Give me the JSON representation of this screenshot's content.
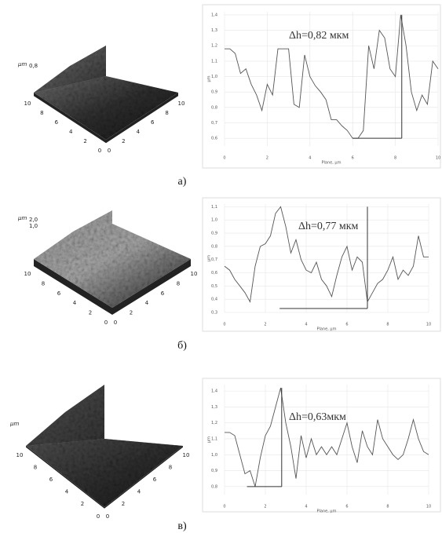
{
  "chart_data": [
    {
      "type": "line",
      "x_label": "Plane, µm",
      "y_label": "µm",
      "annotation": "Δh=0,82 мкм",
      "grid": true,
      "x": [
        0,
        0.25,
        0.5,
        0.75,
        1,
        1.25,
        1.5,
        1.75,
        2,
        2.25,
        2.5,
        2.75,
        3,
        3.25,
        3.5,
        3.75,
        4,
        4.25,
        4.5,
        4.75,
        5,
        5.25,
        5.5,
        5.75,
        6,
        6.25,
        6.5,
        6.75,
        7,
        7.25,
        7.5,
        7.75,
        8,
        8.25,
        8.5,
        8.75,
        9,
        9.25,
        9.5,
        9.75,
        10
      ],
      "values": [
        1.18,
        1.18,
        1.15,
        1.02,
        1.05,
        0.95,
        0.88,
        0.78,
        0.95,
        0.88,
        1.18,
        1.18,
        1.18,
        0.82,
        0.8,
        1.14,
        1.0,
        0.94,
        0.9,
        0.85,
        0.72,
        0.72,
        0.68,
        0.65,
        0.6,
        0.6,
        0.65,
        1.2,
        1.05,
        1.3,
        1.25,
        1.05,
        1.0,
        1.4,
        1.2,
        0.9,
        0.78,
        0.88,
        0.82,
        1.1,
        1.05
      ],
      "color": "#555555",
      "marker_x": [
        6.0,
        8.3
      ],
      "marker_y": [
        0.6,
        1.4
      ],
      "xlim": [
        0,
        10
      ],
      "xticks": [
        0,
        2,
        4,
        6,
        8,
        10
      ],
      "ylim": [
        0.55,
        1.42
      ],
      "yticks": [
        {
          "value": 0.6,
          "label": "0,6"
        },
        {
          "value": 0.7,
          "label": "0,7"
        },
        {
          "value": 0.8,
          "label": "0,8"
        },
        {
          "value": 0.9,
          "label": "0,9"
        },
        {
          "value": 1.0,
          "label": "1,0"
        },
        {
          "value": 1.1,
          "label": "1,1"
        },
        {
          "value": 1.2,
          "label": "1,2"
        },
        {
          "value": 1.3,
          "label": "1,3"
        },
        {
          "value": 1.4,
          "label": "1,4"
        }
      ]
    },
    {
      "type": "line",
      "x_label": "Plane, µm",
      "y_label": "µm",
      "annotation": "Δh=0,77 мкм",
      "grid": true,
      "x": [
        0,
        0.25,
        0.5,
        0.75,
        1,
        1.25,
        1.5,
        1.75,
        2,
        2.25,
        2.5,
        2.75,
        3,
        3.25,
        3.5,
        3.75,
        4,
        4.25,
        4.5,
        4.75,
        5,
        5.25,
        5.5,
        5.75,
        6,
        6.25,
        6.5,
        6.75,
        7,
        7.25,
        7.5,
        7.75,
        8,
        8.25,
        8.5,
        8.75,
        9,
        9.25,
        9.5,
        9.75,
        10
      ],
      "values": [
        0.65,
        0.62,
        0.55,
        0.5,
        0.45,
        0.38,
        0.65,
        0.8,
        0.82,
        0.88,
        1.05,
        1.1,
        0.95,
        0.75,
        0.85,
        0.7,
        0.62,
        0.6,
        0.68,
        0.55,
        0.5,
        0.42,
        0.58,
        0.72,
        0.8,
        0.62,
        0.72,
        0.68,
        0.38,
        0.45,
        0.52,
        0.55,
        0.62,
        0.72,
        0.55,
        0.62,
        0.58,
        0.65,
        0.88,
        0.72,
        0.72
      ],
      "color": "#555555",
      "marker_x": [
        2.7,
        7.0
      ],
      "marker_y": [
        0.33,
        1.1
      ],
      "xlim": [
        0,
        10
      ],
      "xticks": [
        0,
        2,
        4,
        6,
        8,
        10
      ],
      "ylim": [
        0.3,
        1.12
      ],
      "yticks": [
        {
          "value": 0.3,
          "label": "0,3"
        },
        {
          "value": 0.4,
          "label": "0,4"
        },
        {
          "value": 0.5,
          "label": "0,5"
        },
        {
          "value": 0.6,
          "label": "0,6"
        },
        {
          "value": 0.7,
          "label": "0,7"
        },
        {
          "value": 0.8,
          "label": "0,8"
        },
        {
          "value": 0.9,
          "label": "0,9"
        },
        {
          "value": 1.0,
          "label": "1,0"
        },
        {
          "value": 1.1,
          "label": "1,1"
        }
      ]
    },
    {
      "type": "line",
      "x_label": "Plane, µm",
      "y_label": "µm",
      "annotation": "Δh=0,63мкм",
      "grid": true,
      "x": [
        0,
        0.25,
        0.5,
        0.75,
        1,
        1.25,
        1.5,
        1.75,
        2,
        2.25,
        2.5,
        2.75,
        3,
        3.25,
        3.5,
        3.75,
        4,
        4.25,
        4.5,
        4.75,
        5,
        5.25,
        5.5,
        5.75,
        6,
        6.25,
        6.5,
        6.75,
        7,
        7.25,
        7.5,
        7.75,
        8,
        8.25,
        8.5,
        8.75,
        9,
        9.25,
        9.5,
        9.75,
        10
      ],
      "values": [
        1.14,
        1.14,
        1.12,
        1.0,
        0.88,
        0.9,
        0.8,
        0.98,
        1.12,
        1.18,
        1.3,
        1.42,
        1.2,
        1.05,
        0.85,
        1.12,
        0.98,
        1.1,
        1.0,
        1.05,
        1.0,
        1.05,
        1.0,
        1.1,
        1.2,
        1.05,
        0.95,
        1.15,
        1.05,
        1.0,
        1.22,
        1.1,
        1.05,
        1.0,
        0.97,
        1.0,
        1.1,
        1.22,
        1.1,
        1.02,
        1.0
      ],
      "color": "#555555",
      "marker_x": [
        1.1,
        2.8
      ],
      "marker_y": [
        0.8,
        1.42
      ],
      "xlim": [
        0,
        10
      ],
      "xticks": [
        0,
        2,
        4,
        6,
        8,
        10
      ],
      "ylim": [
        0.75,
        1.44
      ],
      "yticks": [
        {
          "value": 0.8,
          "label": "0,8"
        },
        {
          "value": 0.9,
          "label": "0,9"
        },
        {
          "value": 1.0,
          "label": "1,0"
        },
        {
          "value": 1.1,
          "label": "1,1"
        },
        {
          "value": 1.2,
          "label": "1,2"
        },
        {
          "value": 1.3,
          "label": "1,3"
        },
        {
          "value": 1.4,
          "label": "1,4"
        }
      ]
    }
  ],
  "panels": [
    {
      "label": "а)",
      "afm": {
        "unit": "µm",
        "scale": [
          "0,8"
        ],
        "left_axis": [
          "10",
          "8",
          "6",
          "4",
          "2",
          "0"
        ],
        "right_axis": [
          "0",
          "2",
          "4",
          "6",
          "8",
          "10"
        ]
      }
    },
    {
      "label": "б)",
      "afm": {
        "unit": "µm",
        "scale": [
          "2,0",
          "1,0"
        ],
        "left_axis": [
          "10",
          "8",
          "6",
          "4",
          "2",
          "0"
        ],
        "right_axis": [
          "0",
          "2",
          "4",
          "6",
          "8",
          "10"
        ]
      }
    },
    {
      "label": "в)",
      "afm": {
        "unit": "µm",
        "scale": [],
        "left_axis": [
          "10",
          "8",
          "6",
          "4",
          "2",
          "0"
        ],
        "right_axis": [
          "0",
          "2",
          "4",
          "6",
          "8",
          "10"
        ]
      }
    }
  ]
}
